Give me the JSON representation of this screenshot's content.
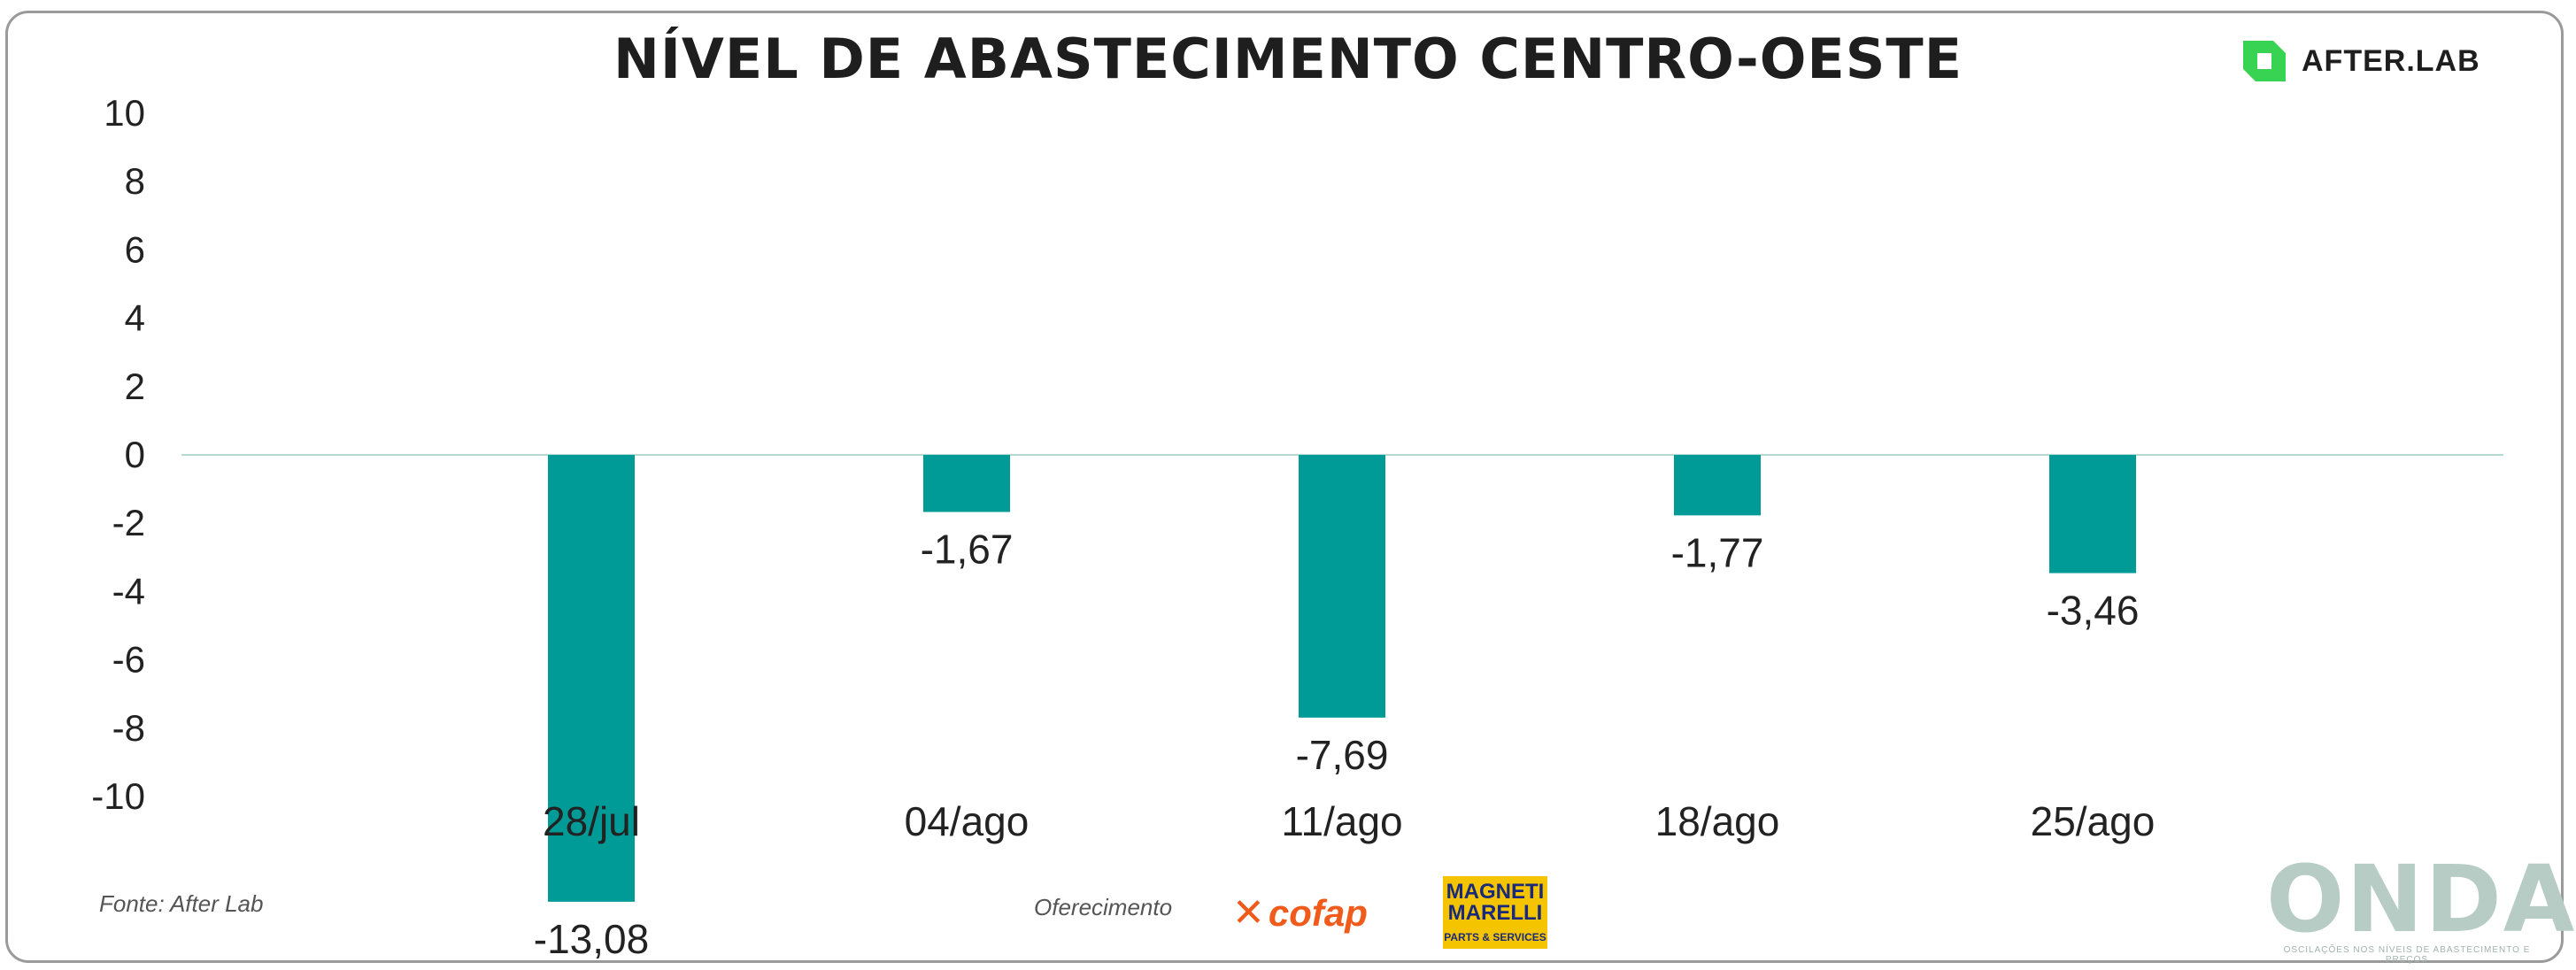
{
  "header": {
    "title": "NÍVEL DE ABASTECIMENTO CENTRO-OESTE"
  },
  "brand": {
    "name": "AFTER.LAB",
    "icon": "after-lab-logo-icon",
    "color": "#39d353"
  },
  "chart_data": {
    "type": "bar",
    "categories": [
      "28/jul",
      "04/ago",
      "11/ago",
      "18/ago",
      "25/ago"
    ],
    "values": [
      -13.08,
      -1.67,
      -7.69,
      -1.77,
      -3.46
    ],
    "value_labels": [
      "-13,08",
      "-1,67",
      "-7,69",
      "-1,77",
      "-3,46"
    ],
    "yticks": [
      10,
      8,
      6,
      4,
      2,
      0,
      -2,
      -4,
      -6,
      -8,
      -10
    ],
    "ylim": [
      -10,
      10
    ],
    "grid": false,
    "bar_color": "#009b96",
    "zero_line_color": "#b5d8d5"
  },
  "footer": {
    "source": "Fonte: After Lab",
    "sponsor_label": "Oferecimento",
    "cofap_logo": "cofap",
    "magneti_marelli_line1": "MAGNETI",
    "magneti_marelli_line2": "MARELLI",
    "magneti_marelli_tagline": "PARTS & SERVICES",
    "onda_logo": "ONDA",
    "onda_tagline": "OSCILAÇÕES NOS NÍVEIS DE ABASTECIMENTO E PREÇOS"
  }
}
